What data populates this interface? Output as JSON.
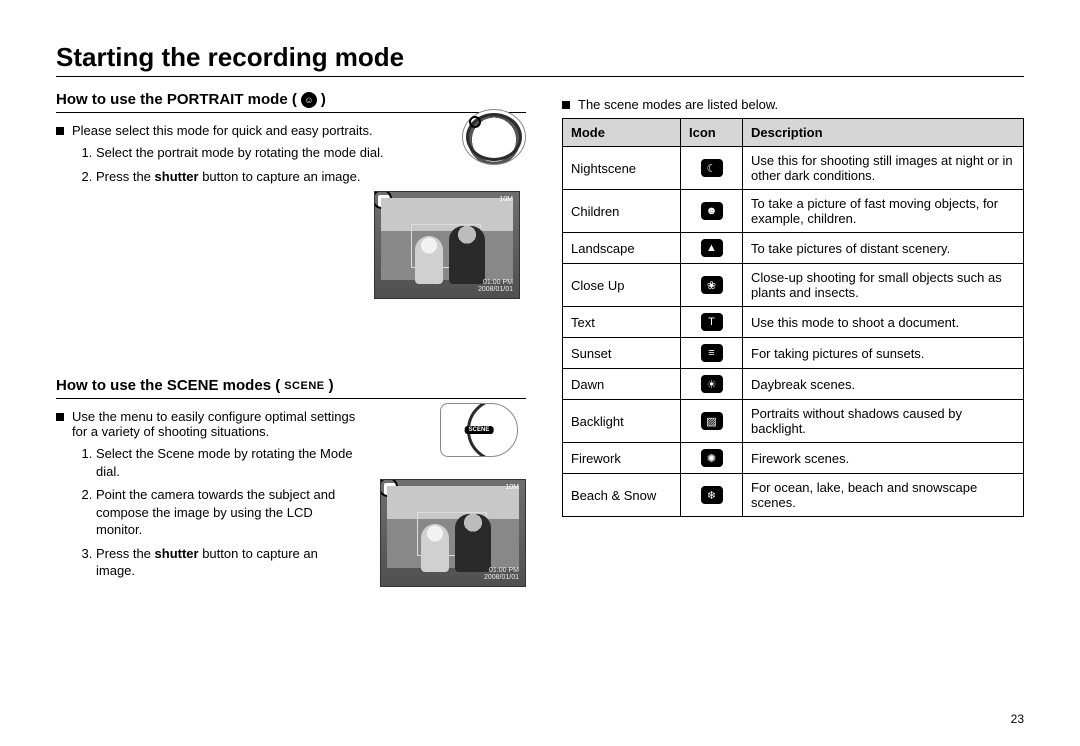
{
  "title": "Starting the recording mode",
  "pageNumber": "23",
  "portrait": {
    "heading_prefix": "How to use the PORTRAIT mode (",
    "heading_suffix": " )",
    "icon_name": "portrait-icon",
    "intro": "Please select this mode for quick and easy portraits.",
    "steps": [
      "Select the portrait mode by rotating the mode dial.",
      "Press the <b>shutter</b> button to capture an image."
    ],
    "lcd": {
      "top_badge": "10M",
      "stamp_line1": "01:00 PM",
      "stamp_line2": "2008/01/01"
    }
  },
  "scene": {
    "heading_prefix": "How to use the SCENE modes (",
    "heading_word": "SCENE",
    "heading_suffix": ")",
    "intro": "Use the menu to easily configure optimal settings for a variety of shooting situations.",
    "steps": [
      "Select the Scene mode by rotating the Mode dial.",
      "Point the camera towards the subject and compose the image by using the LCD monitor.",
      "Press the <b>shutter</b> button to capture an image."
    ],
    "dial_label": "SCENE",
    "lcd": {
      "top_badge": "10M",
      "stamp_line1": "01:00 PM",
      "stamp_line2": "2008/01/01"
    }
  },
  "table": {
    "intro": "The scene modes are listed below.",
    "headers": {
      "mode": "Mode",
      "icon": "Icon",
      "description": "Description"
    },
    "rows": [
      {
        "mode": "Nightscene",
        "icon": "nightscene-icon",
        "glyph": "☾",
        "desc": "Use this for shooting still images at night or in other dark conditions."
      },
      {
        "mode": "Children",
        "icon": "children-icon",
        "glyph": "☻",
        "desc": "To take a picture of fast moving objects, for example, children."
      },
      {
        "mode": "Landscape",
        "icon": "landscape-icon",
        "glyph": "▲",
        "desc": "To take pictures of distant scenery."
      },
      {
        "mode": "Close Up",
        "icon": "closeup-icon",
        "glyph": "❀",
        "desc": "Close-up shooting for small objects such as plants and insects."
      },
      {
        "mode": "Text",
        "icon": "text-icon",
        "glyph": "T",
        "desc": "Use this mode to shoot a document."
      },
      {
        "mode": "Sunset",
        "icon": "sunset-icon",
        "glyph": "≡",
        "desc": "For taking pictures of sunsets."
      },
      {
        "mode": "Dawn",
        "icon": "dawn-icon",
        "glyph": "☀",
        "desc": "Daybreak scenes."
      },
      {
        "mode": "Backlight",
        "icon": "backlight-icon",
        "glyph": "▨",
        "desc": "Portraits without shadows caused by backlight."
      },
      {
        "mode": "Firework",
        "icon": "firework-icon",
        "glyph": "✺",
        "desc": "Firework scenes."
      },
      {
        "mode": "Beach & Snow",
        "icon": "beach-snow-icon",
        "glyph": "❄",
        "desc": "For ocean, lake, beach and snowscape scenes."
      }
    ]
  },
  "colors": {
    "text": "#000000",
    "background": "#ffffff",
    "table_header_bg": "#d6d6d6",
    "icon_bg": "#000000",
    "icon_fg": "#ffffff",
    "lcd_bg_top": "#6f6f6f",
    "lcd_bg_bottom": "#505050"
  }
}
